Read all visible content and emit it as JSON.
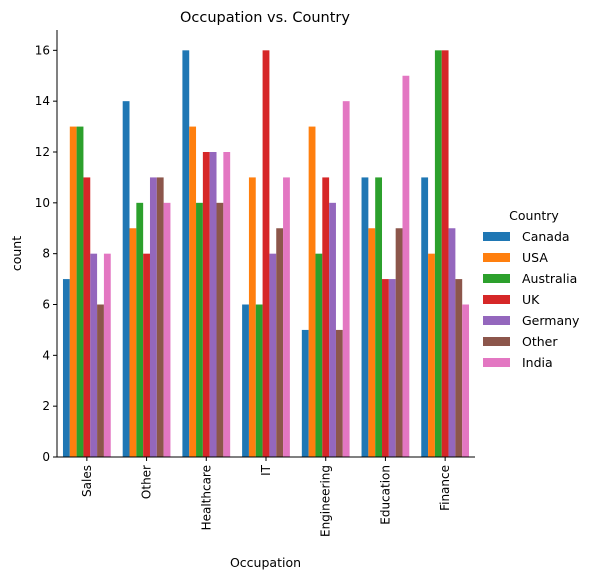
{
  "chart_data": {
    "type": "bar",
    "title": "Occupation vs. Country",
    "xlabel": "Occupation",
    "ylabel": "count",
    "categories": [
      "Sales",
      "Other",
      "Healthcare",
      "IT",
      "Engineering",
      "Education",
      "Finance"
    ],
    "yticks": [
      0,
      2,
      4,
      6,
      8,
      10,
      12,
      14,
      16
    ],
    "ylim": [
      0,
      16.8
    ],
    "grid": false,
    "legend_title": "Country",
    "legend_placement": "right",
    "series": [
      {
        "name": "Canada",
        "color": "#1f77b4",
        "values": [
          7,
          14,
          16,
          6,
          5,
          11,
          11
        ]
      },
      {
        "name": "USA",
        "color": "#ff7f0e",
        "values": [
          13,
          9,
          13,
          11,
          13,
          9,
          8
        ]
      },
      {
        "name": "Australia",
        "color": "#2ca02c",
        "values": [
          13,
          10,
          10,
          6,
          8,
          11,
          16
        ]
      },
      {
        "name": "UK",
        "color": "#d62728",
        "values": [
          11,
          8,
          12,
          16,
          11,
          7,
          16
        ]
      },
      {
        "name": "Germany",
        "color": "#9467bd",
        "values": [
          8,
          11,
          12,
          8,
          10,
          7,
          9
        ]
      },
      {
        "name": "Other",
        "color": "#8c564b",
        "values": [
          6,
          11,
          10,
          9,
          5,
          9,
          7
        ]
      },
      {
        "name": "India",
        "color": "#e377c2",
        "values": [
          8,
          10,
          12,
          11,
          14,
          15,
          6
        ]
      }
    ]
  }
}
